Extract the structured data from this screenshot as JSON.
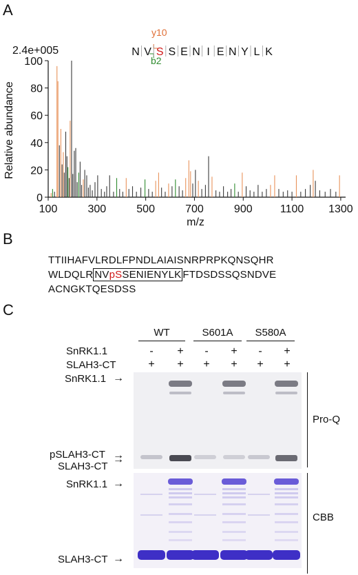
{
  "panelA": {
    "letter": "A",
    "max_label": "2.4e+005",
    "peptide_letters": [
      "N",
      "V",
      "S",
      "S",
      "E",
      "N",
      "I",
      "E",
      "N",
      "Y",
      "L",
      "K"
    ],
    "phospho_index": 2,
    "y_ion": "y10",
    "b_ion": "b2",
    "ylabel": "Relative abundance",
    "xlabel": "m/z",
    "colors": {
      "y_ion": "#e8925a",
      "b_ion": "#2e8b2e",
      "other": "#3a3a3a",
      "phospho": "#d01818"
    }
  },
  "chart_data": {
    "type": "bar",
    "xlabel": "m/z",
    "ylabel": "Relative abundance",
    "xlim": [
      100,
      1320
    ],
    "ylim": [
      0,
      100
    ],
    "xticks": [
      100,
      300,
      500,
      700,
      900,
      1100,
      1300
    ],
    "yticks": [
      0,
      20,
      40,
      60,
      80,
      100
    ],
    "peaks": [
      {
        "mz": 112,
        "y": 3,
        "c": "o"
      },
      {
        "mz": 118,
        "y": 6,
        "c": "g"
      },
      {
        "mz": 126,
        "y": 4,
        "c": "k"
      },
      {
        "mz": 136,
        "y": 96,
        "c": "o"
      },
      {
        "mz": 140,
        "y": 85,
        "c": "o"
      },
      {
        "mz": 146,
        "y": 38,
        "c": "k"
      },
      {
        "mz": 152,
        "y": 50,
        "c": "o"
      },
      {
        "mz": 157,
        "y": 24,
        "c": "k"
      },
      {
        "mz": 162,
        "y": 33,
        "c": "o"
      },
      {
        "mz": 166,
        "y": 18,
        "c": "k"
      },
      {
        "mz": 172,
        "y": 48,
        "c": "k"
      },
      {
        "mz": 177,
        "y": 30,
        "c": "k"
      },
      {
        "mz": 181,
        "y": 22,
        "c": "g"
      },
      {
        "mz": 186,
        "y": 14,
        "c": "k"
      },
      {
        "mz": 190,
        "y": 56,
        "c": "o"
      },
      {
        "mz": 196,
        "y": 100,
        "c": "k"
      },
      {
        "mz": 201,
        "y": 17,
        "c": "k"
      },
      {
        "mz": 207,
        "y": 34,
        "c": "k"
      },
      {
        "mz": 213,
        "y": 36,
        "c": "k"
      },
      {
        "mz": 219,
        "y": 11,
        "c": "k"
      },
      {
        "mz": 225,
        "y": 18,
        "c": "g"
      },
      {
        "mz": 231,
        "y": 26,
        "c": "k"
      },
      {
        "mz": 237,
        "y": 9,
        "c": "k"
      },
      {
        "mz": 244,
        "y": 13,
        "c": "o"
      },
      {
        "mz": 250,
        "y": 20,
        "c": "k"
      },
      {
        "mz": 258,
        "y": 16,
        "c": "k"
      },
      {
        "mz": 265,
        "y": 7,
        "c": "k"
      },
      {
        "mz": 272,
        "y": 9,
        "c": "k"
      },
      {
        "mz": 281,
        "y": 5,
        "c": "k"
      },
      {
        "mz": 292,
        "y": 11,
        "c": "k"
      },
      {
        "mz": 303,
        "y": 16,
        "c": "k"
      },
      {
        "mz": 318,
        "y": 6,
        "c": "k"
      },
      {
        "mz": 331,
        "y": 4,
        "c": "k"
      },
      {
        "mz": 340,
        "y": 8,
        "c": "k"
      },
      {
        "mz": 352,
        "y": 16,
        "c": "k"
      },
      {
        "mz": 368,
        "y": 4,
        "c": "k"
      },
      {
        "mz": 381,
        "y": 14,
        "c": "g"
      },
      {
        "mz": 393,
        "y": 6,
        "c": "k"
      },
      {
        "mz": 406,
        "y": 4,
        "c": "k"
      },
      {
        "mz": 420,
        "y": 14,
        "c": "o"
      },
      {
        "mz": 431,
        "y": 6,
        "c": "k"
      },
      {
        "mz": 446,
        "y": 8,
        "c": "k"
      },
      {
        "mz": 462,
        "y": 4,
        "c": "k"
      },
      {
        "mz": 480,
        "y": 7,
        "c": "k"
      },
      {
        "mz": 497,
        "y": 13,
        "c": "g"
      },
      {
        "mz": 512,
        "y": 6,
        "c": "k"
      },
      {
        "mz": 527,
        "y": 4,
        "c": "k"
      },
      {
        "mz": 541,
        "y": 12,
        "c": "o"
      },
      {
        "mz": 553,
        "y": 18,
        "c": "o"
      },
      {
        "mz": 565,
        "y": 7,
        "c": "k"
      },
      {
        "mz": 580,
        "y": 4,
        "c": "k"
      },
      {
        "mz": 594,
        "y": 10,
        "c": "o"
      },
      {
        "mz": 608,
        "y": 8,
        "c": "k"
      },
      {
        "mz": 622,
        "y": 13,
        "c": "g"
      },
      {
        "mz": 637,
        "y": 8,
        "c": "k"
      },
      {
        "mz": 651,
        "y": 5,
        "c": "k"
      },
      {
        "mz": 664,
        "y": 14,
        "c": "o"
      },
      {
        "mz": 677,
        "y": 27,
        "c": "o"
      },
      {
        "mz": 684,
        "y": 19,
        "c": "o"
      },
      {
        "mz": 693,
        "y": 10,
        "c": "k"
      },
      {
        "mz": 704,
        "y": 20,
        "c": "k"
      },
      {
        "mz": 716,
        "y": 12,
        "c": "o"
      },
      {
        "mz": 730,
        "y": 6,
        "c": "k"
      },
      {
        "mz": 745,
        "y": 9,
        "c": "k"
      },
      {
        "mz": 758,
        "y": 30,
        "c": "k"
      },
      {
        "mz": 772,
        "y": 15,
        "c": "o"
      },
      {
        "mz": 788,
        "y": 5,
        "c": "k"
      },
      {
        "mz": 803,
        "y": 4,
        "c": "k"
      },
      {
        "mz": 819,
        "y": 8,
        "c": "k"
      },
      {
        "mz": 836,
        "y": 4,
        "c": "k"
      },
      {
        "mz": 850,
        "y": 6,
        "c": "k"
      },
      {
        "mz": 865,
        "y": 10,
        "c": "g"
      },
      {
        "mz": 880,
        "y": 4,
        "c": "k"
      },
      {
        "mz": 896,
        "y": 18,
        "c": "o"
      },
      {
        "mz": 912,
        "y": 8,
        "c": "k"
      },
      {
        "mz": 928,
        "y": 5,
        "c": "k"
      },
      {
        "mz": 944,
        "y": 4,
        "c": "k"
      },
      {
        "mz": 961,
        "y": 9,
        "c": "k"
      },
      {
        "mz": 978,
        "y": 4,
        "c": "k"
      },
      {
        "mz": 995,
        "y": 6,
        "c": "k"
      },
      {
        "mz": 1012,
        "y": 9,
        "c": "o"
      },
      {
        "mz": 1029,
        "y": 16,
        "c": "o"
      },
      {
        "mz": 1046,
        "y": 6,
        "c": "k"
      },
      {
        "mz": 1064,
        "y": 4,
        "c": "k"
      },
      {
        "mz": 1082,
        "y": 5,
        "c": "k"
      },
      {
        "mz": 1100,
        "y": 4,
        "c": "k"
      },
      {
        "mz": 1118,
        "y": 16,
        "c": "o"
      },
      {
        "mz": 1136,
        "y": 4,
        "c": "k"
      },
      {
        "mz": 1155,
        "y": 6,
        "c": "k"
      },
      {
        "mz": 1175,
        "y": 9,
        "c": "k"
      },
      {
        "mz": 1187,
        "y": 20,
        "c": "o"
      },
      {
        "mz": 1196,
        "y": 12,
        "c": "k"
      },
      {
        "mz": 1214,
        "y": 5,
        "c": "k"
      },
      {
        "mz": 1236,
        "y": 4,
        "c": "k"
      },
      {
        "mz": 1258,
        "y": 6,
        "c": "k"
      },
      {
        "mz": 1280,
        "y": 4,
        "c": "k"
      },
      {
        "mz": 1295,
        "y": 16,
        "c": "o"
      }
    ]
  },
  "panelB": {
    "letter": "B",
    "line1": "TTIIHAFVLRDLFPNDLAIAISNRPRPKQNSQHR",
    "line2_pre": "WLDQLR",
    "line2_box_a": "NV",
    "line2_box_p": "pS",
    "line2_box_b": "SENIENYLK",
    "line2_post": "FTDSDSSQSNDVE",
    "line3": "ACNGKTQESDSS"
  },
  "panelC": {
    "letter": "C",
    "groups": [
      "WT",
      "S601A",
      "S580A"
    ],
    "row1_label": "SnRK1.1",
    "row2_label": "SLAH3-CT",
    "row1_signs": [
      "-",
      "+",
      "-",
      "+",
      "-",
      "+"
    ],
    "row2_signs": [
      "+",
      "+",
      "+",
      "+",
      "+",
      "+"
    ],
    "proq_labels": {
      "snrk": "SnRK1.1",
      "pslah3": "pSLAH3-CT",
      "slah3": "SLAH3-CT",
      "stain": "Pro-Q"
    },
    "cbb_labels": {
      "snrk": "SnRK1.1",
      "slah3": "SLAH3-CT",
      "stain": "CBB"
    }
  }
}
